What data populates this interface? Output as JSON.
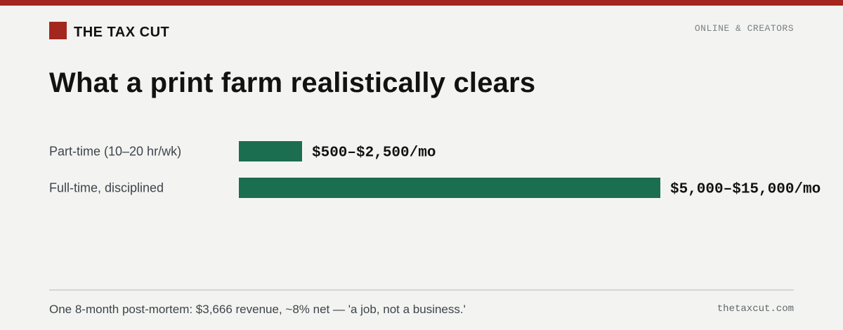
{
  "header": {
    "brand": "THE TAX CUT",
    "section": "ONLINE & CREATORS"
  },
  "colors": {
    "accent": "#a3271f",
    "bar": "#1b6e50",
    "background": "#f3f4f1"
  },
  "chart_data": {
    "type": "bar",
    "orientation": "horizontal",
    "title": "What a print farm realistically clears",
    "categories": [
      "Part-time (10–20 hr/wk)",
      "Full-time, disciplined"
    ],
    "values": [
      1500,
      10000
    ],
    "ranges": [
      [
        500,
        2500
      ],
      [
        5000,
        15000
      ]
    ],
    "unit": "$/mo",
    "value_labels": [
      "$500–$2,500/mo",
      "$5,000–$15,000/mo"
    ],
    "xlim": [
      0,
      10000
    ],
    "grid": false,
    "legend": "none"
  },
  "footer": {
    "note": "One 8-month post-mortem: $3,666 revenue, ~8% net — 'a job, not a business.'",
    "site": "thetaxcut.com"
  }
}
